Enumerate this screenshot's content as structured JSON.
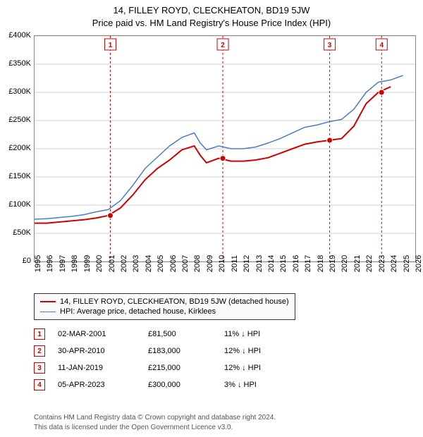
{
  "title_line1": "14, FILLEY ROYD, CLECKHEATON, BD19 5JW",
  "title_line2": "Price paid vs. HM Land Registry's House Price Index (HPI)",
  "chart": {
    "type": "line",
    "background_color": "#ffffff",
    "grid_color": "#d0d0d0",
    "axis_color": "#888888",
    "label_fontsize": 11,
    "xlim": [
      1995,
      2026
    ],
    "ylim": [
      0,
      400000
    ],
    "ytick_step": 50000,
    "ytick_labels": [
      "£0",
      "£50K",
      "£100K",
      "£150K",
      "£200K",
      "£250K",
      "£300K",
      "£350K",
      "£400K"
    ],
    "xticks": [
      1995,
      1996,
      1997,
      1998,
      1999,
      2000,
      2001,
      2002,
      2003,
      2004,
      2005,
      2006,
      2007,
      2008,
      2009,
      2010,
      2011,
      2012,
      2013,
      2014,
      2015,
      2016,
      2017,
      2018,
      2019,
      2020,
      2021,
      2022,
      2023,
      2024,
      2025,
      2026
    ],
    "series": [
      {
        "name": "price_paid",
        "label": "14, FILLEY ROYD, CLECKHEATON, BD19 5JW (detached house)",
        "color": "#d00000",
        "line_width": 2,
        "x": [
          1995,
          1996,
          1997,
          1998,
          1999,
          2000,
          2001,
          2002,
          2003,
          2004,
          2005,
          2006,
          2007,
          2008,
          2008.5,
          2009,
          2010,
          2011,
          2012,
          2013,
          2014,
          2015,
          2016,
          2017,
          2018,
          2019,
          2020,
          2021,
          2022,
          2023,
          2024
        ],
        "y": [
          68000,
          68000,
          70000,
          72000,
          74000,
          77000,
          81500,
          95000,
          118000,
          145000,
          165000,
          180000,
          198000,
          205000,
          188000,
          175000,
          183000,
          178000,
          178000,
          180000,
          184000,
          192000,
          200000,
          208000,
          212000,
          215000,
          218000,
          240000,
          280000,
          300000,
          310000
        ]
      },
      {
        "name": "hpi",
        "label": "HPI: Average price, detached house, Kirklees",
        "color": "#4a7ec8",
        "line_width": 1.5,
        "x": [
          1995,
          1996,
          1997,
          1998,
          1999,
          2000,
          2001,
          2002,
          2003,
          2004,
          2005,
          2006,
          2007,
          2008,
          2008.5,
          2009,
          2010,
          2011,
          2012,
          2013,
          2014,
          2015,
          2016,
          2017,
          2018,
          2019,
          2020,
          2021,
          2022,
          2023,
          2024,
          2025
        ],
        "y": [
          75000,
          76000,
          78000,
          80000,
          83000,
          88000,
          92000,
          108000,
          135000,
          165000,
          185000,
          205000,
          220000,
          228000,
          210000,
          198000,
          205000,
          200000,
          200000,
          203000,
          210000,
          218000,
          228000,
          238000,
          242000,
          248000,
          252000,
          270000,
          300000,
          318000,
          322000,
          330000
        ]
      }
    ],
    "vlines": [
      {
        "x": 2001.17,
        "label": "1",
        "color": "#d00000"
      },
      {
        "x": 2010.33,
        "label": "2",
        "color": "#d00000"
      },
      {
        "x": 2019.03,
        "label": "3",
        "color": "#d00000"
      },
      {
        "x": 2023.26,
        "label": "4",
        "color": "#d00000"
      }
    ],
    "points": [
      {
        "x": 2001.17,
        "y": 81500,
        "color": "#d00000"
      },
      {
        "x": 2010.33,
        "y": 183000,
        "color": "#d00000"
      },
      {
        "x": 2019.03,
        "y": 215000,
        "color": "#d00000"
      },
      {
        "x": 2023.26,
        "y": 300000,
        "color": "#d00000"
      }
    ]
  },
  "legend": [
    {
      "color": "#d00000",
      "width": 2,
      "label": "14, FILLEY ROYD, CLECKHEATON, BD19 5JW (detached house)"
    },
    {
      "color": "#4a7ec8",
      "width": 1.5,
      "label": "HPI: Average price, detached house, Kirklees"
    }
  ],
  "transactions": [
    {
      "n": "1",
      "date": "02-MAR-2001",
      "price": "£81,500",
      "delta": "11% ↓ HPI"
    },
    {
      "n": "2",
      "date": "30-APR-2010",
      "price": "£183,000",
      "delta": "12% ↓ HPI"
    },
    {
      "n": "3",
      "date": "11-JAN-2019",
      "price": "£215,000",
      "delta": "12% ↓ HPI"
    },
    {
      "n": "4",
      "date": "05-APR-2023",
      "price": "£300,000",
      "delta": "3% ↓ HPI"
    }
  ],
  "footer_line1": "Contains HM Land Registry data © Crown copyright and database right 2024.",
  "footer_line2": "This data is licensed under the Open Government Licence v3.0."
}
